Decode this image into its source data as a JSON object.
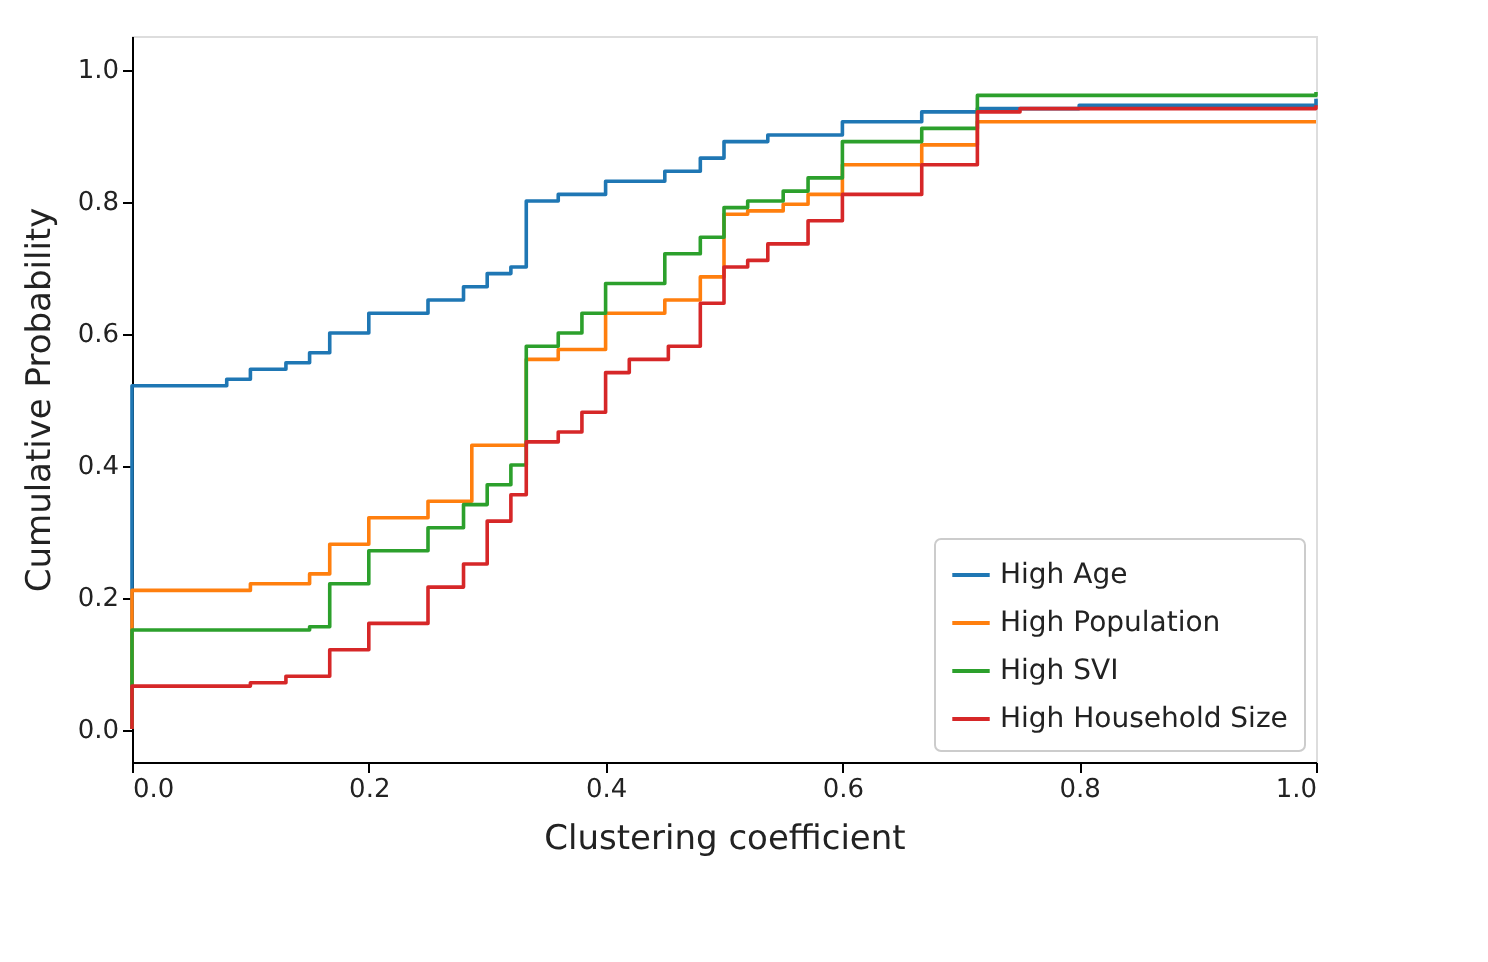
{
  "chart_data": {
    "type": "step",
    "xlabel": "Clustering coefficient",
    "ylabel": "Cumulative Probability",
    "xlim": [
      0,
      1
    ],
    "ylim": [
      -0.05,
      1.05
    ],
    "xticks": [
      {
        "value": 0,
        "label": "0.0"
      },
      0.2,
      0.4,
      0.6,
      0.8,
      {
        "value": 1,
        "label": "1.0"
      }
    ],
    "yticks": [
      {
        "value": 0,
        "label": "0.0"
      },
      0.2,
      0.4,
      0.6,
      0.8,
      {
        "value": 1,
        "label": "1.0"
      }
    ],
    "grid": false,
    "legend": "bottom right",
    "line_style": "solid",
    "marker": "none",
    "series": [
      {
        "name": "High Age",
        "color": "#1f77b4",
        "x": [
          0,
          0,
          0.08,
          0.1,
          0.13,
          0.15,
          0.167,
          0.2,
          0.25,
          0.28,
          0.3,
          0.32,
          0.333,
          0.36,
          0.4,
          0.45,
          0.48,
          0.5,
          0.537,
          0.6,
          0.667,
          0.714,
          0.8,
          1.0
        ],
        "values": [
          0,
          0.52,
          0.53,
          0.545,
          0.555,
          0.57,
          0.6,
          0.63,
          0.65,
          0.67,
          0.69,
          0.7,
          0.8,
          0.81,
          0.83,
          0.845,
          0.865,
          0.89,
          0.9,
          0.92,
          0.935,
          0.94,
          0.945,
          0.955
        ]
      },
      {
        "name": "High Population",
        "color": "#ff7f0e",
        "x": [
          0,
          0,
          0.1,
          0.15,
          0.167,
          0.2,
          0.25,
          0.287,
          0.333,
          0.36,
          0.4,
          0.45,
          0.48,
          0.5,
          0.52,
          0.55,
          0.571,
          0.6,
          0.667,
          0.714,
          1.0
        ],
        "values": [
          0,
          0.21,
          0.22,
          0.235,
          0.28,
          0.32,
          0.345,
          0.43,
          0.56,
          0.575,
          0.63,
          0.65,
          0.685,
          0.78,
          0.785,
          0.795,
          0.81,
          0.855,
          0.885,
          0.92,
          0.92
        ]
      },
      {
        "name": "High SVI",
        "color": "#2ca02c",
        "x": [
          0,
          0,
          0.1,
          0.15,
          0.167,
          0.2,
          0.25,
          0.28,
          0.3,
          0.32,
          0.333,
          0.36,
          0.38,
          0.4,
          0.45,
          0.48,
          0.5,
          0.52,
          0.55,
          0.571,
          0.6,
          0.667,
          0.714,
          1.0
        ],
        "values": [
          0,
          0.15,
          0.15,
          0.155,
          0.22,
          0.27,
          0.305,
          0.34,
          0.37,
          0.4,
          0.58,
          0.6,
          0.63,
          0.675,
          0.72,
          0.745,
          0.79,
          0.8,
          0.815,
          0.835,
          0.89,
          0.91,
          0.96,
          0.965
        ]
      },
      {
        "name": "High Household Size",
        "color": "#d62728",
        "x": [
          0,
          0,
          0.1,
          0.13,
          0.167,
          0.2,
          0.25,
          0.28,
          0.3,
          0.32,
          0.333,
          0.36,
          0.38,
          0.4,
          0.42,
          0.453,
          0.48,
          0.5,
          0.52,
          0.537,
          0.571,
          0.6,
          0.667,
          0.714,
          0.75,
          1.0
        ],
        "values": [
          0,
          0.065,
          0.07,
          0.08,
          0.12,
          0.16,
          0.215,
          0.25,
          0.315,
          0.355,
          0.435,
          0.45,
          0.48,
          0.54,
          0.56,
          0.58,
          0.645,
          0.7,
          0.71,
          0.735,
          0.77,
          0.81,
          0.855,
          0.935,
          0.94,
          0.945
        ]
      }
    ]
  }
}
